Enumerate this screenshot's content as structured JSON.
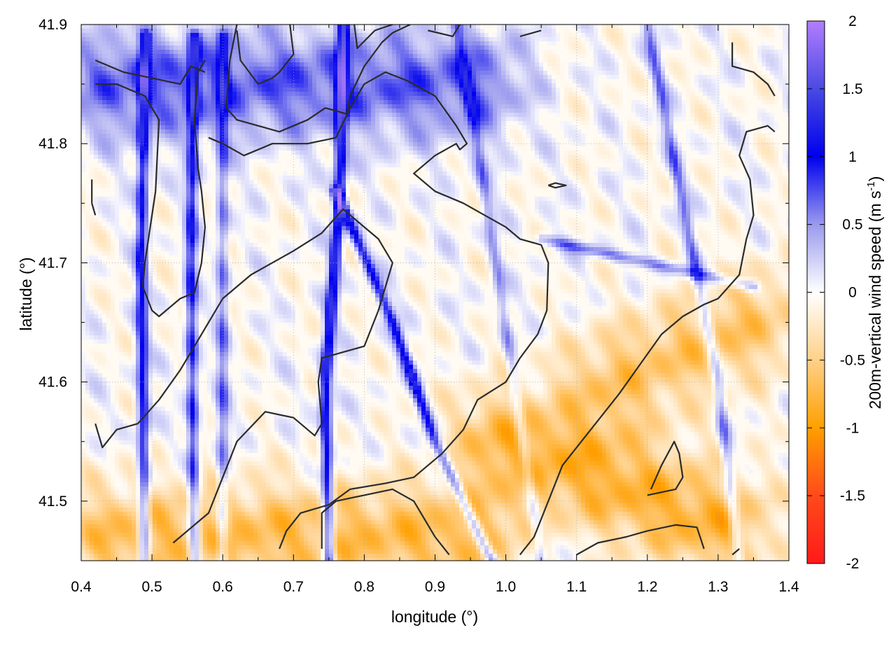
{
  "chart_data": {
    "type": "heatmap",
    "xlabel": "longitude (°)",
    "ylabel": "latitude (°)",
    "xlim": [
      0.4,
      1.4
    ],
    "ylim": [
      41.45,
      41.9
    ],
    "x_ticks": [
      0.4,
      0.5,
      0.6,
      0.7,
      0.8,
      0.9,
      1.0,
      1.1,
      1.2,
      1.3,
      1.4
    ],
    "x_tick_labels": [
      "0.4",
      "0.5",
      "0.6",
      "0.7",
      "0.8",
      "0.9",
      "1.0",
      "1.1",
      "1.2",
      "1.3",
      "1.4"
    ],
    "y_ticks": [
      41.5,
      41.6,
      41.7,
      41.8,
      41.9
    ],
    "y_tick_labels": [
      "41.5",
      "41.6",
      "41.7",
      "41.8",
      "41.9"
    ],
    "grid": true,
    "colorbar": {
      "label_main": "200m-vertical wind speed (m s",
      "label_sup": "-1",
      "label_end": ")",
      "range": [
        -2,
        2
      ],
      "ticks": [
        2,
        1.5,
        1,
        0.5,
        0,
        -0.5,
        -1,
        -1.5,
        -2
      ],
      "tick_labels": [
        "2",
        "1.5",
        "1",
        "0.5",
        "0",
        "-0.5",
        "-1",
        "-1.5",
        "-2"
      ],
      "stops": [
        {
          "value": -2,
          "color": "#ff1a1a"
        },
        {
          "value": -1.5,
          "color": "#ff4a1a"
        },
        {
          "value": -1,
          "color": "#ff9f00"
        },
        {
          "value": -0.5,
          "color": "#ffd089"
        },
        {
          "value": 0,
          "color": "#ffffff"
        },
        {
          "value": 0.5,
          "color": "#9a9aee"
        },
        {
          "value": 1,
          "color": "#0000ee"
        },
        {
          "value": 1.5,
          "color": "#4a4ae2"
        },
        {
          "value": 2,
          "color": "#b27dff"
        }
      ]
    },
    "field_features": [
      {
        "kind": "updraft_line",
        "path": [
          [
            0.49,
            41.89
          ],
          [
            0.485,
            41.7
          ],
          [
            0.49,
            41.45
          ]
        ],
        "value": 1.0
      },
      {
        "kind": "updraft_line",
        "path": [
          [
            0.56,
            41.89
          ],
          [
            0.555,
            41.7
          ],
          [
            0.56,
            41.45
          ]
        ],
        "value": 0.9
      },
      {
        "kind": "updraft_line",
        "path": [
          [
            0.6,
            41.89
          ],
          [
            0.6,
            41.45
          ]
        ],
        "value": 0.6
      },
      {
        "kind": "updraft_line",
        "path": [
          [
            0.77,
            41.9
          ],
          [
            0.765,
            41.75
          ],
          [
            0.745,
            41.6
          ],
          [
            0.75,
            41.45
          ]
        ],
        "value": 1.2
      },
      {
        "kind": "updraft_line",
        "path": [
          [
            0.76,
            41.76
          ],
          [
            0.84,
            41.65
          ],
          [
            0.9,
            41.55
          ],
          [
            0.98,
            41.45
          ]
        ],
        "value": 1.0
      },
      {
        "kind": "updraft_line",
        "path": [
          [
            0.93,
            41.9
          ],
          [
            0.96,
            41.8
          ],
          [
            1.05,
            41.45
          ]
        ],
        "value": 0.5
      },
      {
        "kind": "updraft_line",
        "path": [
          [
            1.2,
            41.9
          ],
          [
            1.3,
            41.6
          ],
          [
            1.33,
            41.45
          ]
        ],
        "value": 0.6
      },
      {
        "kind": "updraft_line",
        "path": [
          [
            1.05,
            41.72
          ],
          [
            1.35,
            41.68
          ]
        ],
        "value": 0.6
      },
      {
        "kind": "downdraft_area",
        "path": [
          [
            1.0,
            41.55
          ],
          [
            1.3,
            41.48
          ]
        ],
        "value": -0.8
      },
      {
        "kind": "downdraft_area",
        "path": [
          [
            0.45,
            41.47
          ],
          [
            0.95,
            41.47
          ]
        ],
        "value": -0.7
      },
      {
        "kind": "downdraft_area",
        "path": [
          [
            1.15,
            41.6
          ],
          [
            1.35,
            41.65
          ]
        ],
        "value": -0.6
      },
      {
        "kind": "updraft_area",
        "path": [
          [
            0.45,
            41.85
          ],
          [
            0.95,
            41.85
          ]
        ],
        "value": 0.7
      }
    ],
    "contours": [
      [
        [
          0.42,
          41.87
        ],
        [
          0.46,
          41.86
        ],
        [
          0.5,
          41.855
        ],
        [
          0.54,
          41.85
        ],
        [
          0.555,
          41.865
        ],
        [
          0.575,
          41.86
        ]
      ],
      [
        [
          0.415,
          41.75
        ],
        [
          0.42,
          41.74
        ]
      ],
      [
        [
          0.415,
          41.77
        ],
        [
          0.415,
          41.75
        ]
      ],
      [
        [
          0.42,
          41.85
        ],
        [
          0.45,
          41.85
        ],
        [
          0.49,
          41.84
        ],
        [
          0.51,
          41.82
        ],
        [
          0.505,
          41.76
        ],
        [
          0.49,
          41.7
        ],
        [
          0.487,
          41.68
        ],
        [
          0.5,
          41.66
        ],
        [
          0.51,
          41.655
        ],
        [
          0.54,
          41.67
        ],
        [
          0.56,
          41.675
        ],
        [
          0.57,
          41.7
        ],
        [
          0.575,
          41.73
        ],
        [
          0.57,
          41.76
        ],
        [
          0.565,
          41.78
        ],
        [
          0.56,
          41.82
        ],
        [
          0.565,
          41.86
        ],
        [
          0.575,
          41.87
        ]
      ],
      [
        [
          0.62,
          41.895
        ],
        [
          0.625,
          41.87
        ],
        [
          0.65,
          41.85
        ],
        [
          0.67,
          41.855
        ],
        [
          0.68,
          41.86
        ],
        [
          0.7,
          41.875
        ],
        [
          0.695,
          41.9
        ]
      ],
      [
        [
          0.62,
          41.9
        ],
        [
          0.61,
          41.87
        ],
        [
          0.605,
          41.83
        ],
        [
          0.62,
          41.82
        ],
        [
          0.65,
          41.815
        ],
        [
          0.68,
          41.81
        ],
        [
          0.72,
          41.82
        ],
        [
          0.745,
          41.83
        ],
        [
          0.775,
          41.825
        ],
        [
          0.78,
          41.84
        ],
        [
          0.8,
          41.865
        ],
        [
          0.825,
          41.885
        ],
        [
          0.84,
          41.893
        ],
        [
          0.865,
          41.9
        ]
      ],
      [
        [
          0.785,
          41.905
        ],
        [
          0.79,
          41.88
        ],
        [
          0.815,
          41.895
        ],
        [
          0.84,
          41.9
        ]
      ],
      [
        [
          0.89,
          41.895
        ],
        [
          0.925,
          41.89
        ],
        [
          0.935,
          41.9
        ]
      ],
      [
        [
          1.02,
          41.89
        ],
        [
          1.05,
          41.895
        ]
      ],
      [
        [
          1.32,
          41.885
        ],
        [
          1.32,
          41.865
        ],
        [
          1.35,
          41.86
        ],
        [
          1.37,
          41.85
        ],
        [
          1.38,
          41.84
        ]
      ],
      [
        [
          0.58,
          41.805
        ],
        [
          0.6,
          41.8
        ],
        [
          0.63,
          41.79
        ],
        [
          0.67,
          41.8
        ],
        [
          0.72,
          41.8
        ],
        [
          0.76,
          41.805
        ],
        [
          0.78,
          41.83
        ],
        [
          0.8,
          41.85
        ],
        [
          0.83,
          41.86
        ],
        [
          0.86,
          41.853
        ],
        [
          0.9,
          41.84
        ],
        [
          0.93,
          41.815
        ],
        [
          0.945,
          41.8
        ],
        [
          0.935,
          41.795
        ],
        [
          0.93,
          41.8
        ],
        [
          0.9,
          41.79
        ],
        [
          0.87,
          41.775
        ],
        [
          0.9,
          41.76
        ],
        [
          0.94,
          41.75
        ],
        [
          0.97,
          41.74
        ],
        [
          1.0,
          41.73
        ],
        [
          1.02,
          41.72
        ],
        [
          1.05,
          41.715
        ],
        [
          1.06,
          41.7
        ],
        [
          1.058,
          41.66
        ],
        [
          1.045,
          41.64
        ],
        [
          1.02,
          41.62
        ],
        [
          1.0,
          41.6
        ],
        [
          0.96,
          41.585
        ],
        [
          0.94,
          41.56
        ],
        [
          0.91,
          41.54
        ],
        [
          0.87,
          41.52
        ],
        [
          0.83,
          41.515
        ],
        [
          0.78,
          41.51
        ],
        [
          0.75,
          41.497
        ],
        [
          0.71,
          41.49
        ],
        [
          0.69,
          41.475
        ],
        [
          0.68,
          41.46
        ]
      ],
      [
        [
          0.53,
          41.465
        ],
        [
          0.55,
          41.475
        ],
        [
          0.58,
          41.49
        ],
        [
          0.6,
          41.52
        ],
        [
          0.62,
          41.55
        ],
        [
          0.66,
          41.575
        ],
        [
          0.7,
          41.57
        ],
        [
          0.73,
          41.555
        ],
        [
          0.74,
          41.565
        ],
        [
          0.735,
          41.6
        ],
        [
          0.74,
          41.62
        ],
        [
          0.8,
          41.63
        ],
        [
          0.82,
          41.66
        ],
        [
          0.83,
          41.68
        ],
        [
          0.84,
          41.7
        ],
        [
          0.82,
          41.72
        ],
        [
          0.79,
          41.735
        ],
        [
          0.77,
          41.745
        ],
        [
          0.74,
          41.725
        ],
        [
          0.7,
          41.71
        ],
        [
          0.67,
          41.7
        ],
        [
          0.64,
          41.69
        ],
        [
          0.6,
          41.67
        ],
        [
          0.57,
          41.64
        ],
        [
          0.54,
          41.61
        ],
        [
          0.51,
          41.585
        ],
        [
          0.48,
          41.565
        ],
        [
          0.45,
          41.56
        ],
        [
          0.43,
          41.545
        ],
        [
          0.42,
          41.565
        ]
      ],
      [
        [
          0.74,
          41.46
        ],
        [
          0.74,
          41.49
        ],
        [
          0.76,
          41.5
        ],
        [
          0.8,
          41.505
        ],
        [
          0.84,
          41.51
        ],
        [
          0.87,
          41.5
        ],
        [
          0.9,
          41.47
        ],
        [
          0.92,
          41.455
        ]
      ],
      [
        [
          1.02,
          41.455
        ],
        [
          1.04,
          41.47
        ],
        [
          1.06,
          41.5
        ],
        [
          1.08,
          41.53
        ],
        [
          1.12,
          41.56
        ],
        [
          1.16,
          41.59
        ],
        [
          1.19,
          41.615
        ],
        [
          1.22,
          41.64
        ],
        [
          1.25,
          41.655
        ],
        [
          1.28,
          41.665
        ],
        [
          1.3,
          41.67
        ],
        [
          1.33,
          41.69
        ],
        [
          1.34,
          41.72
        ],
        [
          1.35,
          41.74
        ],
        [
          1.345,
          41.77
        ],
        [
          1.33,
          41.79
        ],
        [
          1.34,
          41.81
        ],
        [
          1.37,
          41.815
        ],
        [
          1.38,
          41.81
        ]
      ],
      [
        [
          1.2,
          41.505
        ],
        [
          1.24,
          41.51
        ],
        [
          1.25,
          41.52
        ],
        [
          1.245,
          41.54
        ],
        [
          1.238,
          41.55
        ],
        [
          1.22,
          41.53
        ],
        [
          1.205,
          41.51
        ]
      ],
      [
        [
          1.06,
          41.765
        ],
        [
          1.07,
          41.767
        ],
        [
          1.085,
          41.765
        ],
        [
          1.07,
          41.763
        ],
        [
          1.06,
          41.765
        ]
      ],
      [
        [
          1.1,
          41.455
        ],
        [
          1.13,
          41.465
        ],
        [
          1.17,
          41.47
        ],
        [
          1.2,
          41.475
        ],
        [
          1.24,
          41.48
        ],
        [
          1.27,
          41.478
        ],
        [
          1.28,
          41.46
        ]
      ],
      [
        [
          1.32,
          41.455
        ],
        [
          1.33,
          41.46
        ]
      ]
    ]
  }
}
